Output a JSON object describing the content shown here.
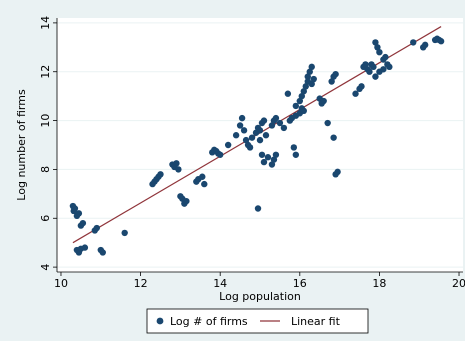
{
  "chart_data": {
    "type": "scatter",
    "xlabel": "Log population",
    "ylabel": "Log number of firms",
    "xlim": [
      9.9,
      20.1
    ],
    "ylim": [
      3.8,
      14.2
    ],
    "xticks": [
      10,
      12,
      14,
      16,
      18,
      20
    ],
    "yticks": [
      4,
      6,
      8,
      10,
      12,
      14
    ],
    "grid": "horizontal",
    "legend": "bottom",
    "colors": {
      "background": "#eaf2f3",
      "plot_background": "#ffffff",
      "points": "#1a476f",
      "fit": "#90353b",
      "grid": "#eaf2f3"
    },
    "series": [
      {
        "name": "Log # of firms",
        "kind": "scatter",
        "points": [
          [
            10.3,
            6.5
          ],
          [
            10.32,
            6.3
          ],
          [
            10.35,
            6.4
          ],
          [
            10.4,
            6.1
          ],
          [
            10.45,
            6.2
          ],
          [
            10.5,
            5.7
          ],
          [
            10.55,
            5.8
          ],
          [
            10.4,
            4.7
          ],
          [
            10.45,
            4.6
          ],
          [
            10.5,
            4.75
          ],
          [
            10.6,
            4.8
          ],
          [
            10.85,
            5.5
          ],
          [
            10.9,
            5.6
          ],
          [
            11.0,
            4.7
          ],
          [
            11.05,
            4.6
          ],
          [
            11.6,
            5.4
          ],
          [
            12.3,
            7.4
          ],
          [
            12.35,
            7.5
          ],
          [
            12.4,
            7.6
          ],
          [
            12.45,
            7.7
          ],
          [
            12.5,
            7.8
          ],
          [
            12.8,
            8.2
          ],
          [
            12.85,
            8.1
          ],
          [
            12.9,
            8.25
          ],
          [
            12.95,
            8.0
          ],
          [
            13.0,
            6.9
          ],
          [
            13.05,
            6.8
          ],
          [
            13.1,
            6.6
          ],
          [
            13.15,
            6.7
          ],
          [
            13.4,
            7.5
          ],
          [
            13.45,
            7.6
          ],
          [
            13.55,
            7.7
          ],
          [
            13.6,
            7.4
          ],
          [
            13.8,
            8.7
          ],
          [
            13.85,
            8.8
          ],
          [
            13.9,
            8.75
          ],
          [
            13.95,
            8.65
          ],
          [
            14.0,
            8.6
          ],
          [
            14.2,
            9.0
          ],
          [
            14.4,
            9.4
          ],
          [
            14.5,
            9.8
          ],
          [
            14.55,
            10.1
          ],
          [
            14.6,
            9.6
          ],
          [
            14.65,
            9.2
          ],
          [
            14.7,
            9.0
          ],
          [
            14.75,
            8.9
          ],
          [
            14.8,
            9.3
          ],
          [
            14.9,
            9.5
          ],
          [
            14.95,
            9.7
          ],
          [
            15.0,
            9.6
          ],
          [
            15.05,
            9.9
          ],
          [
            15.1,
            10.0
          ],
          [
            15.15,
            9.4
          ],
          [
            15.0,
            9.2
          ],
          [
            15.05,
            8.6
          ],
          [
            15.1,
            8.3
          ],
          [
            15.2,
            8.5
          ],
          [
            15.3,
            8.2
          ],
          [
            15.35,
            8.4
          ],
          [
            15.4,
            8.6
          ],
          [
            15.3,
            9.8
          ],
          [
            15.35,
            10.0
          ],
          [
            15.4,
            10.1
          ],
          [
            15.5,
            9.9
          ],
          [
            15.6,
            9.7
          ],
          [
            15.7,
            11.1
          ],
          [
            15.75,
            10.0
          ],
          [
            15.8,
            10.1
          ],
          [
            15.9,
            10.2
          ],
          [
            16.0,
            10.3
          ],
          [
            16.05,
            10.5
          ],
          [
            16.1,
            10.4
          ],
          [
            15.9,
            10.6
          ],
          [
            16.0,
            10.8
          ],
          [
            16.05,
            11.0
          ],
          [
            16.1,
            11.2
          ],
          [
            16.15,
            11.4
          ],
          [
            16.2,
            11.8
          ],
          [
            16.25,
            12.0
          ],
          [
            16.3,
            12.2
          ],
          [
            16.2,
            11.6
          ],
          [
            16.3,
            11.5
          ],
          [
            16.35,
            11.7
          ],
          [
            15.85,
            8.9
          ],
          [
            15.9,
            8.6
          ],
          [
            14.95,
            6.4
          ],
          [
            16.95,
            7.9
          ],
          [
            16.9,
            7.8
          ],
          [
            16.5,
            10.9
          ],
          [
            16.55,
            10.7
          ],
          [
            16.6,
            10.8
          ],
          [
            16.7,
            9.9
          ],
          [
            16.85,
            9.3
          ],
          [
            16.8,
            11.6
          ],
          [
            16.85,
            11.8
          ],
          [
            16.9,
            11.9
          ],
          [
            17.4,
            11.1
          ],
          [
            17.5,
            11.3
          ],
          [
            17.55,
            11.4
          ],
          [
            17.6,
            12.2
          ],
          [
            17.65,
            12.3
          ],
          [
            17.7,
            12.1
          ],
          [
            17.75,
            12.0
          ],
          [
            17.8,
            12.3
          ],
          [
            17.85,
            12.2
          ],
          [
            17.9,
            13.2
          ],
          [
            17.95,
            13.0
          ],
          [
            18.0,
            12.8
          ],
          [
            17.9,
            11.8
          ],
          [
            18.0,
            12.0
          ],
          [
            18.1,
            12.1
          ],
          [
            18.1,
            12.5
          ],
          [
            18.15,
            12.6
          ],
          [
            18.2,
            12.3
          ],
          [
            18.25,
            12.2
          ],
          [
            18.85,
            13.2
          ],
          [
            19.1,
            13.0
          ],
          [
            19.15,
            13.1
          ],
          [
            19.4,
            13.3
          ],
          [
            19.45,
            13.35
          ],
          [
            19.5,
            13.3
          ],
          [
            19.55,
            13.25
          ]
        ]
      },
      {
        "name": "Linear fit",
        "kind": "line",
        "points": [
          [
            10.3,
            5.0
          ],
          [
            19.55,
            13.85
          ]
        ]
      }
    ]
  }
}
